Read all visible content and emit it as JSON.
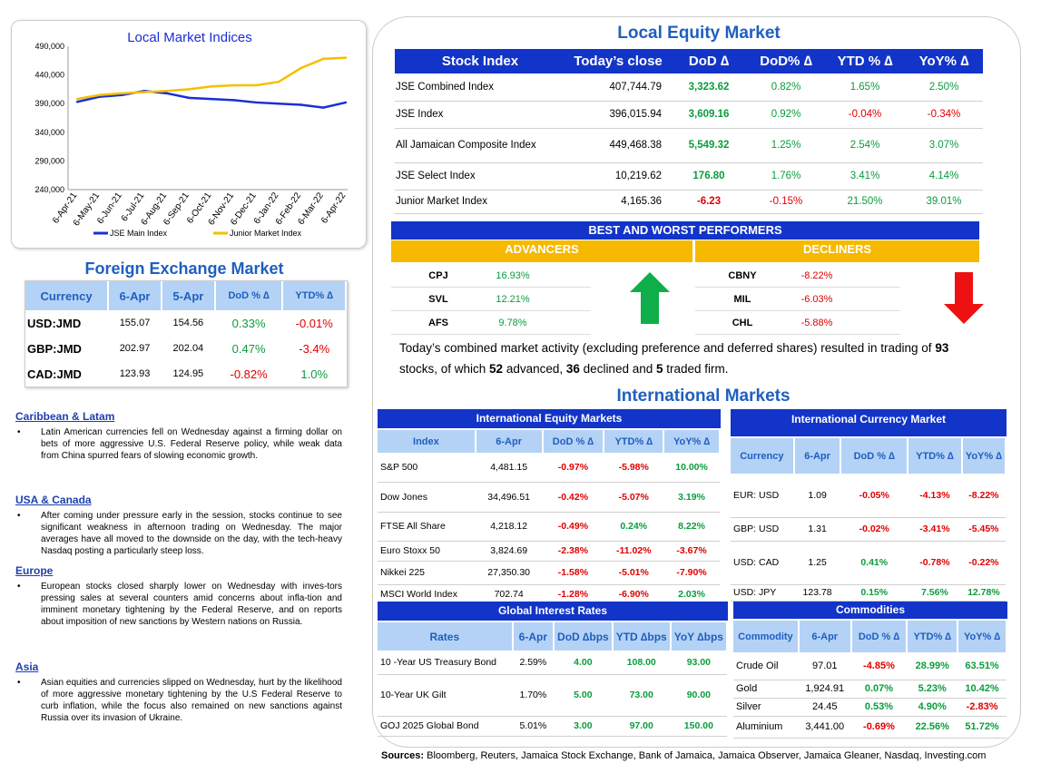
{
  "chart": {
    "title": "Local Market Indices",
    "legend": [
      "JSE Main Index",
      "Junior Market Index"
    ],
    "colors": {
      "jse": "#1a2fd4",
      "junior": "#f5bf00"
    }
  },
  "chart_data": {
    "type": "line",
    "title": "Local Market Indices",
    "x": [
      "6-Apr-21",
      "6-May-21",
      "6-Jun-21",
      "6-Jul-21",
      "6-Aug-21",
      "6-Sep-21",
      "6-Oct-21",
      "6-Nov-21",
      "6-Dec-21",
      "6-Jan-22",
      "6-Feb-22",
      "6-Mar-22",
      "6-Apr-22"
    ],
    "y_ticks": [
      "490,000",
      "440,000",
      "390,000",
      "340,000",
      "290,000",
      "240,000"
    ],
    "ylim": [
      240000,
      490000
    ],
    "series": [
      {
        "name": "JSE Main Index",
        "values": [
          393000,
          402000,
          405000,
          412000,
          408000,
          400000,
          398000,
          396000,
          392000,
          390000,
          388000,
          383000,
          392000
        ]
      },
      {
        "name": "Junior Market Index",
        "values": [
          398000,
          405000,
          408000,
          410000,
          412000,
          415000,
          420000,
          422000,
          422000,
          428000,
          452000,
          468000,
          470000
        ]
      }
    ]
  },
  "fx": {
    "title": "Foreign Exchange Market",
    "headers": [
      "Currency",
      "6-Apr",
      "5-Apr",
      "DoD % ∆",
      "YTD% ∆"
    ],
    "rows": [
      [
        "USD:JMD",
        "155.07",
        "154.56",
        "0.33%",
        "-0.01%"
      ],
      [
        "GBP:JMD",
        "202.97",
        "202.04",
        "0.47%",
        "-3.4%"
      ],
      [
        "CAD:JMD",
        "123.93",
        "124.95",
        "-0.82%",
        "1.0%"
      ]
    ]
  },
  "news": [
    {
      "heading": "Caribbean & Latam",
      "text": "Latin American currencies fell on Wednesday against a firming dollar on bets of more aggressive U.S. Federal Reserve policy, while weak data from China spurred fears of slowing economic growth."
    },
    {
      "heading": "USA & Canada",
      "text": "After coming under pressure early in the session, stocks continue to see significant weakness in afternoon trading on Wednesday. The major averages have all moved to the downside on the day, with the tech-heavy Nasdaq posting a particularly steep loss."
    },
    {
      "heading": "Europe",
      "text": "European stocks closed sharply lower on Wednesday with inves-tors pressing sales at several counters amid concerns about infla-tion and imminent monetary tightening by the Federal Reserve, and on reports about imposition of new sanctions by Western nations on Russia."
    },
    {
      "heading": "Asia",
      "text": "Asian equities and currencies slipped on Wednesday, hurt by the likelihood of more aggressive monetary tightening by the U.S Federal Reserve to curb inflation, while the focus also remained on new sanctions against Russia over its invasion of Ukraine."
    }
  ],
  "equity": {
    "title": "Local Equity Market",
    "headers": [
      "Stock Index",
      "Today’s close",
      "DoD  ∆",
      "DoD% ∆",
      "YTD % ∆",
      "YoY% ∆"
    ],
    "rows": [
      [
        "JSE Combined Index",
        "407,744.79",
        "3,323.62",
        "0.82%",
        "1.65%",
        "2.50%"
      ],
      [
        "JSE Index",
        "396,015.94",
        "3,609.16",
        "0.92%",
        "-0.04%",
        "-0.34%"
      ],
      [
        "All Jamaican Composite Index",
        "449,468.38",
        "5,549.32",
        "1.25%",
        "2.54%",
        "3.07%"
      ],
      [
        "JSE Select Index",
        "10,219.62",
        "176.80",
        "1.76%",
        "3.41%",
        "4.14%"
      ],
      [
        "Junior Market Index",
        "4,165.36",
        "-6.23",
        "-0.15%",
        "21.50%",
        "39.01%"
      ]
    ]
  },
  "performers": {
    "title": "BEST AND WORST PERFORMERS",
    "adv_label": "ADVANCERS",
    "dec_label": "DECLINERS",
    "advancers": [
      [
        "CPJ",
        "16.93%"
      ],
      [
        "SVL",
        "12.21%"
      ],
      [
        "AFS",
        "9.78%"
      ]
    ],
    "decliners": [
      [
        "CBNY",
        "-8.22%"
      ],
      [
        "MIL",
        "-6.03%"
      ],
      [
        "CHL",
        "-5.88%"
      ]
    ]
  },
  "summary": {
    "pre": "Today’s combined market activity (excluding preference and deferred shares) resulted in trading of ",
    "total": "93",
    "mid1": " stocks, of which ",
    "adv": "52",
    "mid2": " advanced, ",
    "dec": "36",
    "mid3": " declined and ",
    "firm": "5",
    "post": " traded firm."
  },
  "intl": {
    "title": "International Markets",
    "equity_title": "International Equity Markets",
    "equity_headers": [
      "Index",
      "6-Apr",
      "DoD % ∆",
      "YTD% ∆",
      "YoY% ∆"
    ],
    "equity_rows": [
      [
        "S&P 500",
        "4,481.15",
        "-0.97%",
        "-5.98%",
        "10.00%"
      ],
      [
        "Dow Jones",
        "34,496.51",
        "-0.42%",
        "-5.07%",
        "3.19%"
      ],
      [
        "FTSE All Share",
        "4,218.12",
        "-0.49%",
        "0.24%",
        "8.22%"
      ],
      [
        "Euro Stoxx 50",
        "3,824.69",
        "-2.38%",
        "-11.02%",
        "-3.67%"
      ],
      [
        "Nikkei 225",
        "27,350.30",
        "-1.58%",
        "-5.01%",
        "-7.90%"
      ],
      [
        "MSCI World Index",
        "702.74",
        "-1.28%",
        "-6.90%",
        "2.03%"
      ]
    ],
    "currency_title": "International Currency Market",
    "currency_headers": [
      "Currency",
      "6-Apr",
      "DoD % ∆",
      "YTD% ∆",
      "YoY% ∆"
    ],
    "currency_rows": [
      [
        "EUR: USD",
        "1.09",
        "-0.05%",
        "-4.13%",
        "-8.22%"
      ],
      [
        "GBP: USD",
        "1.31",
        "-0.02%",
        "-3.41%",
        "-5.45%"
      ],
      [
        "USD: CAD",
        "1.25",
        "0.41%",
        "-0.78%",
        "-0.22%"
      ],
      [
        "USD: JPY",
        "123.78",
        "0.15%",
        "7.56%",
        "12.78%"
      ]
    ],
    "rates_title": "Global Interest Rates",
    "rates_headers": [
      "Rates",
      "6-Apr",
      "DoD ∆bps",
      "YTD ∆bps",
      "YoY ∆bps"
    ],
    "rates_rows": [
      [
        "10 -Year US Treasury Bond",
        "2.59%",
        "4.00",
        "108.00",
        "93.00"
      ],
      [
        "10-Year UK Gilt",
        "1.70%",
        "5.00",
        "73.00",
        "90.00"
      ],
      [
        "GOJ 2025 Global Bond",
        "5.01%",
        "3.00",
        "97.00",
        "150.00"
      ]
    ],
    "commod_title": "Commodities",
    "commod_headers": [
      "Commodity",
      "6-Apr",
      "DoD % ∆",
      "YTD% ∆",
      "YoY% ∆"
    ],
    "commod_rows": [
      [
        "Crude Oil",
        "97.01",
        "-4.85%",
        "28.99%",
        "63.51%"
      ],
      [
        "Gold",
        "1,924.91",
        "0.07%",
        "5.23%",
        "10.42%"
      ],
      [
        "Silver",
        "24.45",
        "0.53%",
        "4.90%",
        "-2.83%"
      ],
      [
        "Aluminium",
        "3,441.00",
        "-0.69%",
        "22.56%",
        "51.72%"
      ]
    ]
  },
  "sources": {
    "label": "Sources:",
    "text": " Bloomberg, Reuters, Jamaica Stock Exchange, Bank of Jamaica, Jamaica Observer, Jamaica Gleaner, Nasdaq, Investing.com"
  }
}
